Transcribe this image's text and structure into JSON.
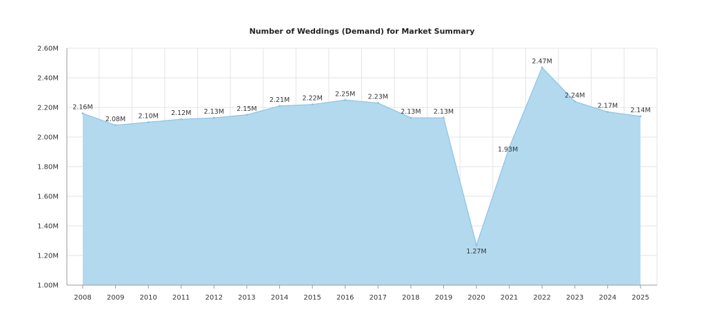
{
  "chart_data": {
    "type": "area",
    "title": "Number of Weddings (Demand) for Market Summary",
    "xlabel": "",
    "ylabel": "",
    "categories": [
      "2008",
      "2009",
      "2010",
      "2011",
      "2012",
      "2013",
      "2014",
      "2015",
      "2016",
      "2017",
      "2018",
      "2019",
      "2020",
      "2021",
      "2022",
      "2023",
      "2024",
      "2025"
    ],
    "series": [
      {
        "values": [
          2.16,
          2.08,
          2.1,
          2.12,
          2.13,
          2.15,
          2.21,
          2.22,
          2.25,
          2.23,
          2.13,
          2.13,
          1.27,
          1.93,
          2.47,
          2.24,
          2.17,
          2.14
        ],
        "labels": [
          "2.16M",
          "2.08M",
          "2.10M",
          "2.12M",
          "2.13M",
          "2.15M",
          "2.21M",
          "2.22M",
          "2.25M",
          "2.23M",
          "2.13M",
          "2.13M",
          "1.27M",
          "1.93M",
          "2.47M",
          "2.24M",
          "2.17M",
          "2.14M"
        ]
      }
    ],
    "ylim": [
      1.0,
      2.6
    ],
    "yticks": [
      1.0,
      1.2,
      1.4,
      1.6,
      1.8,
      2.0,
      2.2,
      2.4,
      2.6
    ],
    "ytick_labels": [
      "1.00M",
      "1.20M",
      "1.40M",
      "1.60M",
      "1.80M",
      "2.00M",
      "2.20M",
      "2.40M",
      "2.60M"
    ],
    "grid": true,
    "legend": "none",
    "colors": {
      "fill": "#b3d9ee",
      "line": "#8cc4e3"
    }
  }
}
